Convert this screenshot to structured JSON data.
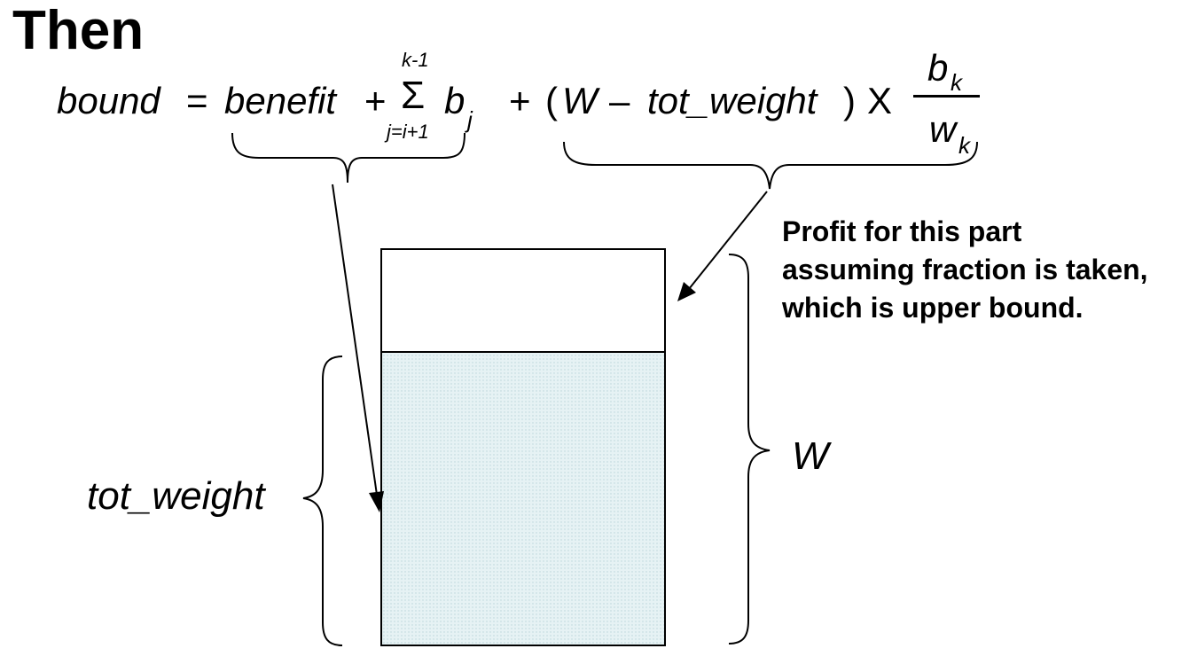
{
  "heading": "Then",
  "formula": {
    "lhs": "bound",
    "equals": "=",
    "term_benefit": "benefit",
    "plus1": "+",
    "sigma": "Σ",
    "sum_upper": "k-1",
    "sum_lower": "j=i+1",
    "b": "b",
    "b_sub": "j",
    "plus2": "+",
    "open_paren": "(",
    "W": "W",
    "minus": "–",
    "tot_weight": "tot_weight",
    "close_paren": ")",
    "times": "X",
    "frac_num": "b",
    "frac_num_sub": "k",
    "frac_den": "w",
    "frac_den_sub": "k"
  },
  "annotation": {
    "lines": [
      "Profit for this part",
      "assuming fraction is taken,",
      "which is upper bound."
    ]
  },
  "labels": {
    "tot_weight": "tot_weight",
    "W": "W"
  },
  "colors": {
    "fill": "#e6f2f4",
    "stroke": "#000000"
  }
}
